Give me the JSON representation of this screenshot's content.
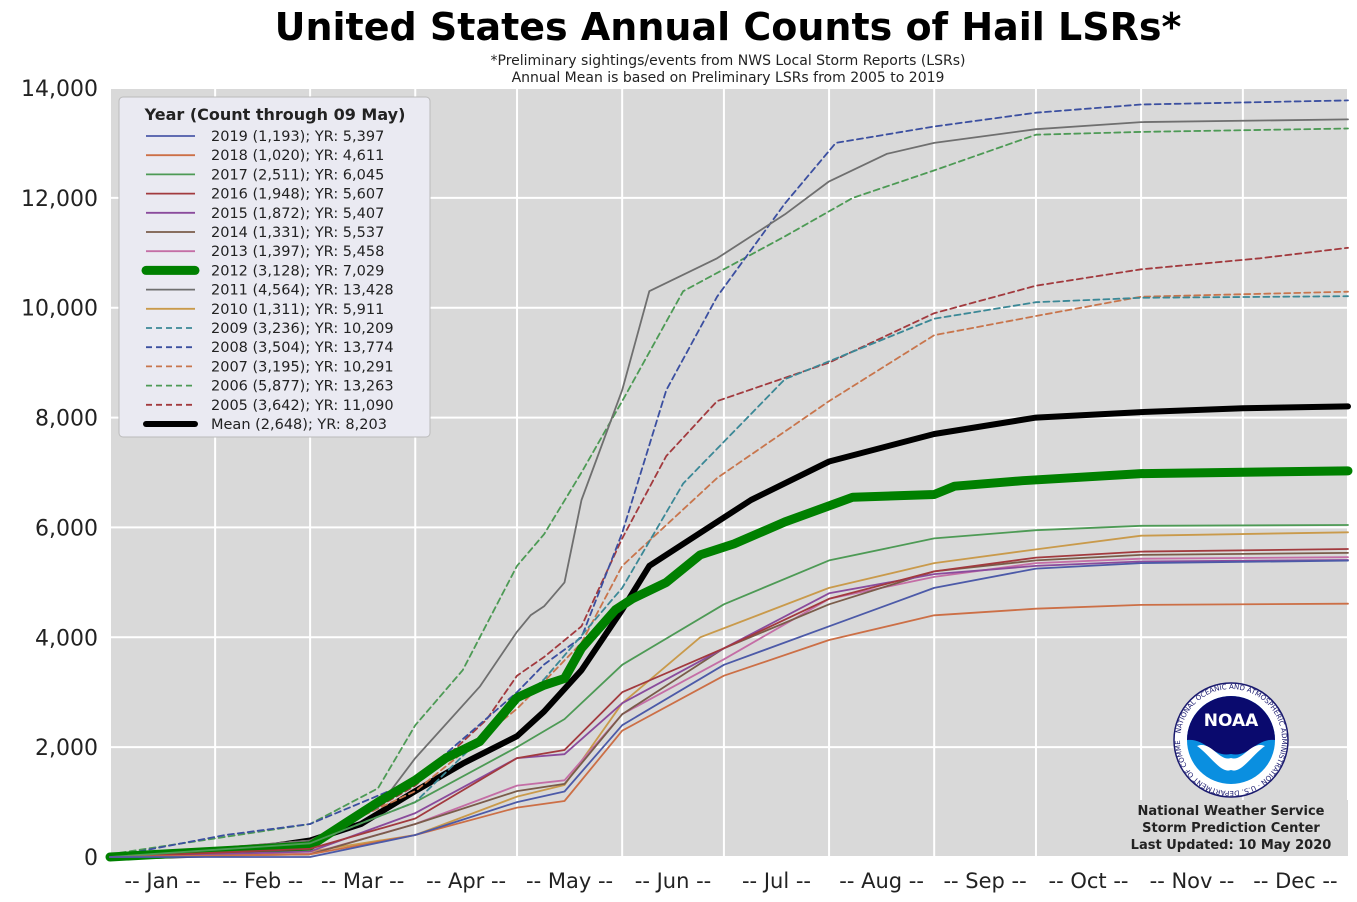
{
  "chart_data": {
    "type": "line",
    "title": "United States Annual Counts of Hail LSRs*",
    "subtitle_lines": [
      "*Preliminary sightings/events from NWS Local Storm Reports (LSRs)",
      "Annual Mean is based on Preliminary LSRs from 2005 to 2019"
    ],
    "xlabel": "",
    "ylabel": "",
    "x_unit": "day of year",
    "xlim": [
      1,
      366
    ],
    "ylim": [
      0,
      14000
    ],
    "y_ticks": [
      0,
      2000,
      4000,
      6000,
      8000,
      10000,
      12000,
      14000
    ],
    "y_tick_labels": [
      "0",
      "2,000",
      "4,000",
      "6,000",
      "8,000",
      "10,000",
      "12,000",
      "14,000"
    ],
    "x_tick_positions": [
      1,
      32,
      60,
      91,
      121,
      152,
      182,
      213,
      244,
      274,
      305,
      335,
      366
    ],
    "x_month_labels": [
      "-- Jan --",
      "-- Feb --",
      "-- Mar --",
      "-- Apr --",
      "-- May --",
      "-- Jun --",
      "-- Jul --",
      "-- Aug --",
      "-- Sep --",
      "-- Oct --",
      "-- Nov --",
      "-- Dec --"
    ],
    "grid": true,
    "legend_position": "top-left",
    "legend_title": "Year (Count through 09 May)",
    "series": [
      {
        "name": "2019 (1,193); YR: 5,397",
        "color": "#4c5aa8",
        "dash": "solid",
        "width": 1.8,
        "points": [
          [
            1,
            0
          ],
          [
            60,
            0
          ],
          [
            91,
            400
          ],
          [
            121,
            1000
          ],
          [
            135,
            1193
          ],
          [
            152,
            2400
          ],
          [
            182,
            3500
          ],
          [
            213,
            4200
          ],
          [
            244,
            4900
          ],
          [
            274,
            5250
          ],
          [
            305,
            5350
          ],
          [
            366,
            5397
          ]
        ]
      },
      {
        "name": "2018 (1,020); YR: 4,611",
        "color": "#cc6f46",
        "dash": "solid",
        "width": 1.8,
        "points": [
          [
            1,
            0
          ],
          [
            60,
            50
          ],
          [
            91,
            400
          ],
          [
            121,
            900
          ],
          [
            135,
            1020
          ],
          [
            152,
            2300
          ],
          [
            182,
            3300
          ],
          [
            213,
            3950
          ],
          [
            244,
            4400
          ],
          [
            274,
            4520
          ],
          [
            305,
            4590
          ],
          [
            366,
            4611
          ]
        ]
      },
      {
        "name": "2017 (2,511); YR: 6,045",
        "color": "#4d9a55",
        "dash": "solid",
        "width": 1.8,
        "points": [
          [
            1,
            0
          ],
          [
            60,
            250
          ],
          [
            91,
            1000
          ],
          [
            121,
            2000
          ],
          [
            135,
            2511
          ],
          [
            152,
            3500
          ],
          [
            182,
            4600
          ],
          [
            213,
            5400
          ],
          [
            244,
            5800
          ],
          [
            274,
            5950
          ],
          [
            305,
            6030
          ],
          [
            366,
            6045
          ]
        ]
      },
      {
        "name": "2016 (1,948); YR: 5,607",
        "color": "#a23a3e",
        "dash": "solid",
        "width": 1.8,
        "points": [
          [
            1,
            0
          ],
          [
            60,
            150
          ],
          [
            91,
            700
          ],
          [
            121,
            1800
          ],
          [
            135,
            1948
          ],
          [
            152,
            3000
          ],
          [
            182,
            3800
          ],
          [
            213,
            4700
          ],
          [
            244,
            5200
          ],
          [
            274,
            5450
          ],
          [
            305,
            5560
          ],
          [
            366,
            5607
          ]
        ]
      },
      {
        "name": "2015 (1,872); YR: 5,407",
        "color": "#8a4b9c",
        "dash": "solid",
        "width": 1.8,
        "points": [
          [
            1,
            0
          ],
          [
            60,
            100
          ],
          [
            91,
            800
          ],
          [
            121,
            1800
          ],
          [
            135,
            1872
          ],
          [
            152,
            2800
          ],
          [
            182,
            3800
          ],
          [
            213,
            4800
          ],
          [
            244,
            5150
          ],
          [
            274,
            5300
          ],
          [
            305,
            5380
          ],
          [
            366,
            5407
          ]
        ]
      },
      {
        "name": "2014 (1,331); YR: 5,537",
        "color": "#7a5c4a",
        "dash": "solid",
        "width": 1.8,
        "points": [
          [
            1,
            0
          ],
          [
            60,
            50
          ],
          [
            91,
            600
          ],
          [
            121,
            1200
          ],
          [
            135,
            1331
          ],
          [
            152,
            2600
          ],
          [
            182,
            3800
          ],
          [
            213,
            4600
          ],
          [
            244,
            5200
          ],
          [
            274,
            5400
          ],
          [
            305,
            5500
          ],
          [
            366,
            5537
          ]
        ]
      },
      {
        "name": "2013 (1,397); YR: 5,458",
        "color": "#c46ea6",
        "dash": "solid",
        "width": 1.8,
        "points": [
          [
            1,
            0
          ],
          [
            60,
            60
          ],
          [
            91,
            600
          ],
          [
            121,
            1300
          ],
          [
            135,
            1397
          ],
          [
            152,
            2600
          ],
          [
            182,
            3600
          ],
          [
            213,
            4700
          ],
          [
            244,
            5100
          ],
          [
            274,
            5350
          ],
          [
            305,
            5430
          ],
          [
            366,
            5458
          ]
        ]
      },
      {
        "name": "2012 (3,128); YR: 7,029",
        "color": "#008000",
        "dash": "solid",
        "width": 9,
        "points": [
          [
            1,
            0
          ],
          [
            60,
            200
          ],
          [
            70,
            600
          ],
          [
            80,
            1000
          ],
          [
            91,
            1400
          ],
          [
            100,
            1800
          ],
          [
            110,
            2100
          ],
          [
            121,
            2900
          ],
          [
            129,
            3128
          ],
          [
            135,
            3250
          ],
          [
            140,
            3800
          ],
          [
            150,
            4500
          ],
          [
            155,
            4700
          ],
          [
            165,
            5000
          ],
          [
            175,
            5500
          ],
          [
            185,
            5700
          ],
          [
            200,
            6100
          ],
          [
            220,
            6550
          ],
          [
            244,
            6600
          ],
          [
            250,
            6750
          ],
          [
            270,
            6850
          ],
          [
            305,
            6980
          ],
          [
            366,
            7029
          ]
        ]
      },
      {
        "name": "2011 (4,564); YR: 13,428",
        "color": "#6f6f6f",
        "dash": "solid",
        "width": 1.8,
        "points": [
          [
            1,
            0
          ],
          [
            60,
            300
          ],
          [
            80,
            900
          ],
          [
            91,
            1800
          ],
          [
            110,
            3100
          ],
          [
            121,
            4100
          ],
          [
            125,
            4400
          ],
          [
            129,
            4564
          ],
          [
            135,
            5000
          ],
          [
            140,
            6500
          ],
          [
            152,
            8500
          ],
          [
            160,
            10300
          ],
          [
            180,
            10900
          ],
          [
            200,
            11700
          ],
          [
            213,
            12300
          ],
          [
            230,
            12800
          ],
          [
            244,
            13000
          ],
          [
            274,
            13250
          ],
          [
            305,
            13380
          ],
          [
            366,
            13428
          ]
        ]
      },
      {
        "name": "2010 (1,311); YR: 5,911",
        "color": "#c99a4b",
        "dash": "solid",
        "width": 1.8,
        "points": [
          [
            1,
            0
          ],
          [
            60,
            100
          ],
          [
            91,
            400
          ],
          [
            121,
            1100
          ],
          [
            135,
            1311
          ],
          [
            152,
            2800
          ],
          [
            175,
            4000
          ],
          [
            213,
            4900
          ],
          [
            244,
            5350
          ],
          [
            274,
            5600
          ],
          [
            305,
            5850
          ],
          [
            366,
            5911
          ]
        ]
      },
      {
        "name": "2009 (3,236); YR: 10,209",
        "color": "#3b8896",
        "dash": "dash",
        "width": 1.8,
        "points": [
          [
            1,
            0
          ],
          [
            60,
            250
          ],
          [
            91,
            1000
          ],
          [
            121,
            2800
          ],
          [
            129,
            3236
          ],
          [
            152,
            4900
          ],
          [
            170,
            6800
          ],
          [
            200,
            8700
          ],
          [
            244,
            9800
          ],
          [
            274,
            10100
          ],
          [
            305,
            10180
          ],
          [
            366,
            10209
          ]
        ]
      },
      {
        "name": "2008 (3,504); YR: 13,774",
        "color": "#3b4fa0",
        "dash": "dash",
        "width": 1.8,
        "points": [
          [
            1,
            0
          ],
          [
            35,
            400
          ],
          [
            60,
            600
          ],
          [
            91,
            1400
          ],
          [
            121,
            3000
          ],
          [
            129,
            3504
          ],
          [
            140,
            4000
          ],
          [
            152,
            5900
          ],
          [
            165,
            8500
          ],
          [
            180,
            10200
          ],
          [
            200,
            11900
          ],
          [
            215,
            13000
          ],
          [
            244,
            13300
          ],
          [
            274,
            13550
          ],
          [
            305,
            13700
          ],
          [
            366,
            13774
          ]
        ]
      },
      {
        "name": "2007 (3,195); YR: 10,291",
        "color": "#c8754c",
        "dash": "dash",
        "width": 1.8,
        "points": [
          [
            1,
            0
          ],
          [
            60,
            300
          ],
          [
            91,
            1200
          ],
          [
            121,
            2700
          ],
          [
            129,
            3195
          ],
          [
            140,
            3900
          ],
          [
            152,
            5300
          ],
          [
            180,
            6900
          ],
          [
            213,
            8300
          ],
          [
            244,
            9500
          ],
          [
            274,
            9850
          ],
          [
            305,
            10200
          ],
          [
            366,
            10291
          ]
        ]
      },
      {
        "name": "2006 (5,877); YR: 13,263",
        "color": "#4d9a55",
        "dash": "dash",
        "width": 1.8,
        "points": [
          [
            1,
            50
          ],
          [
            60,
            600
          ],
          [
            80,
            1250
          ],
          [
            91,
            2400
          ],
          [
            105,
            3400
          ],
          [
            121,
            5300
          ],
          [
            129,
            5877
          ],
          [
            140,
            7000
          ],
          [
            152,
            8300
          ],
          [
            170,
            10300
          ],
          [
            200,
            11300
          ],
          [
            220,
            12000
          ],
          [
            244,
            12500
          ],
          [
            274,
            13150
          ],
          [
            305,
            13200
          ],
          [
            366,
            13263
          ]
        ]
      },
      {
        "name": "2005 (3,642); YR: 11,090",
        "color": "#a23a3e",
        "dash": "dash",
        "width": 1.8,
        "points": [
          [
            1,
            0
          ],
          [
            60,
            200
          ],
          [
            91,
            1300
          ],
          [
            112,
            2500
          ],
          [
            121,
            3300
          ],
          [
            129,
            3642
          ],
          [
            140,
            4200
          ],
          [
            152,
            5800
          ],
          [
            165,
            7300
          ],
          [
            180,
            8300
          ],
          [
            213,
            9000
          ],
          [
            244,
            9900
          ],
          [
            274,
            10400
          ],
          [
            305,
            10700
          ],
          [
            340,
            10900
          ],
          [
            366,
            11090
          ]
        ]
      },
      {
        "name": "Mean (2,648); YR: 8,203",
        "color": "#000000",
        "dash": "solid",
        "width": 6,
        "points": [
          [
            1,
            0
          ],
          [
            32,
            50
          ],
          [
            60,
            300
          ],
          [
            75,
            600
          ],
          [
            91,
            1200
          ],
          [
            105,
            1700
          ],
          [
            121,
            2200
          ],
          [
            129,
            2648
          ],
          [
            140,
            3400
          ],
          [
            152,
            4500
          ],
          [
            160,
            5300
          ],
          [
            175,
            5900
          ],
          [
            190,
            6500
          ],
          [
            213,
            7200
          ],
          [
            244,
            7700
          ],
          [
            274,
            8000
          ],
          [
            305,
            8100
          ],
          [
            335,
            8170
          ],
          [
            366,
            8203
          ]
        ]
      }
    ]
  },
  "credit": {
    "line1": "National Weather Service",
    "line2": "Storm Prediction Center",
    "line3": "Last Updated: 10 May 2020"
  },
  "logo": {
    "word": "NOAA",
    "ring_text": "NATIONAL OCEANIC AND ATMOSPHERIC ADMINISTRATION · U.S. DEPARTMENT OF COMMERCE",
    "icon": "noaa-logo-icon"
  },
  "colors": {
    "plot_background": "#d9d9d9",
    "grid": "#ffffff",
    "legend_background": "#eaeaf2"
  }
}
